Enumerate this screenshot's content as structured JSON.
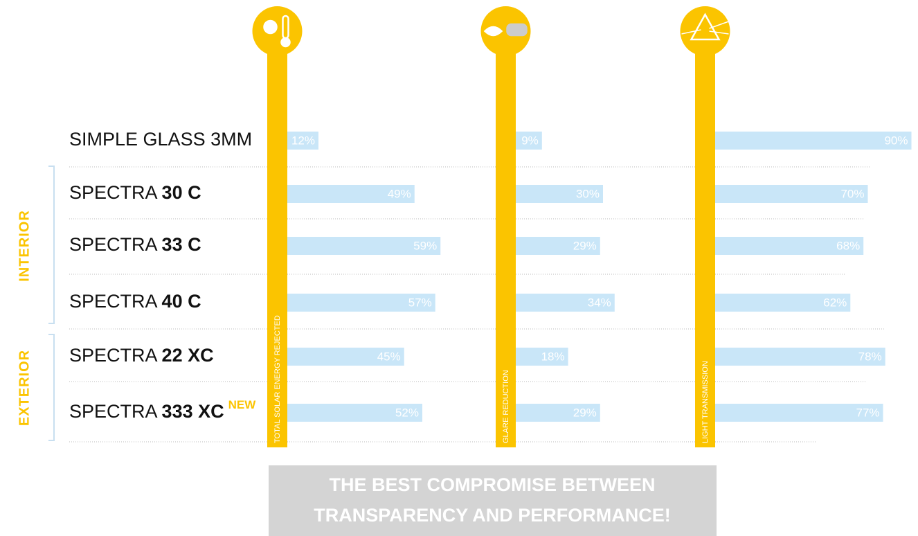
{
  "chart_data": {
    "type": "bar",
    "categories": [
      {
        "text": "SIMPLE GLASS  3MM"
      },
      {
        "text": "SPECTRA ",
        "bold": "30 C"
      },
      {
        "text": "SPECTRA ",
        "bold": "33 C"
      },
      {
        "text": "SPECTRA ",
        "bold": "40 C"
      },
      {
        "text": "SPECTRA ",
        "bold": "22 XC"
      },
      {
        "text": "SPECTRA ",
        "bold": "333 XC",
        "badge": "NEW"
      }
    ],
    "groups": [
      "INTERIOR",
      "EXTERIOR"
    ],
    "series": [
      {
        "name": "TOTAL SOLAR ENERGY REJECTED",
        "color": "#c9e6f8",
        "values": [
          12,
          49,
          59,
          57,
          45,
          52
        ],
        "value_labels": [
          "12%",
          "49%",
          "59%",
          "57%",
          "45%",
          "52%"
        ]
      },
      {
        "name": "GLARE REDUCTION",
        "color": "#c9e6f8",
        "values": [
          9,
          30,
          29,
          34,
          18,
          29
        ],
        "value_labels": [
          "9%",
          "30%",
          "29%",
          "34%",
          "18%",
          "29%"
        ]
      },
      {
        "name": "LIGHT TRANSMISSION",
        "color": "#c9e6f8",
        "values": [
          90,
          70,
          68,
          62,
          78,
          77
        ],
        "value_labels": [
          "90%",
          "70%",
          "68%",
          "62%",
          "78%",
          "77%"
        ]
      }
    ],
    "column_color": "#fbc400",
    "footer": [
      "THE BEST COMPROMISE BETWEEN",
      "TRANSPARENCY AND PERFORMANCE!"
    ]
  }
}
